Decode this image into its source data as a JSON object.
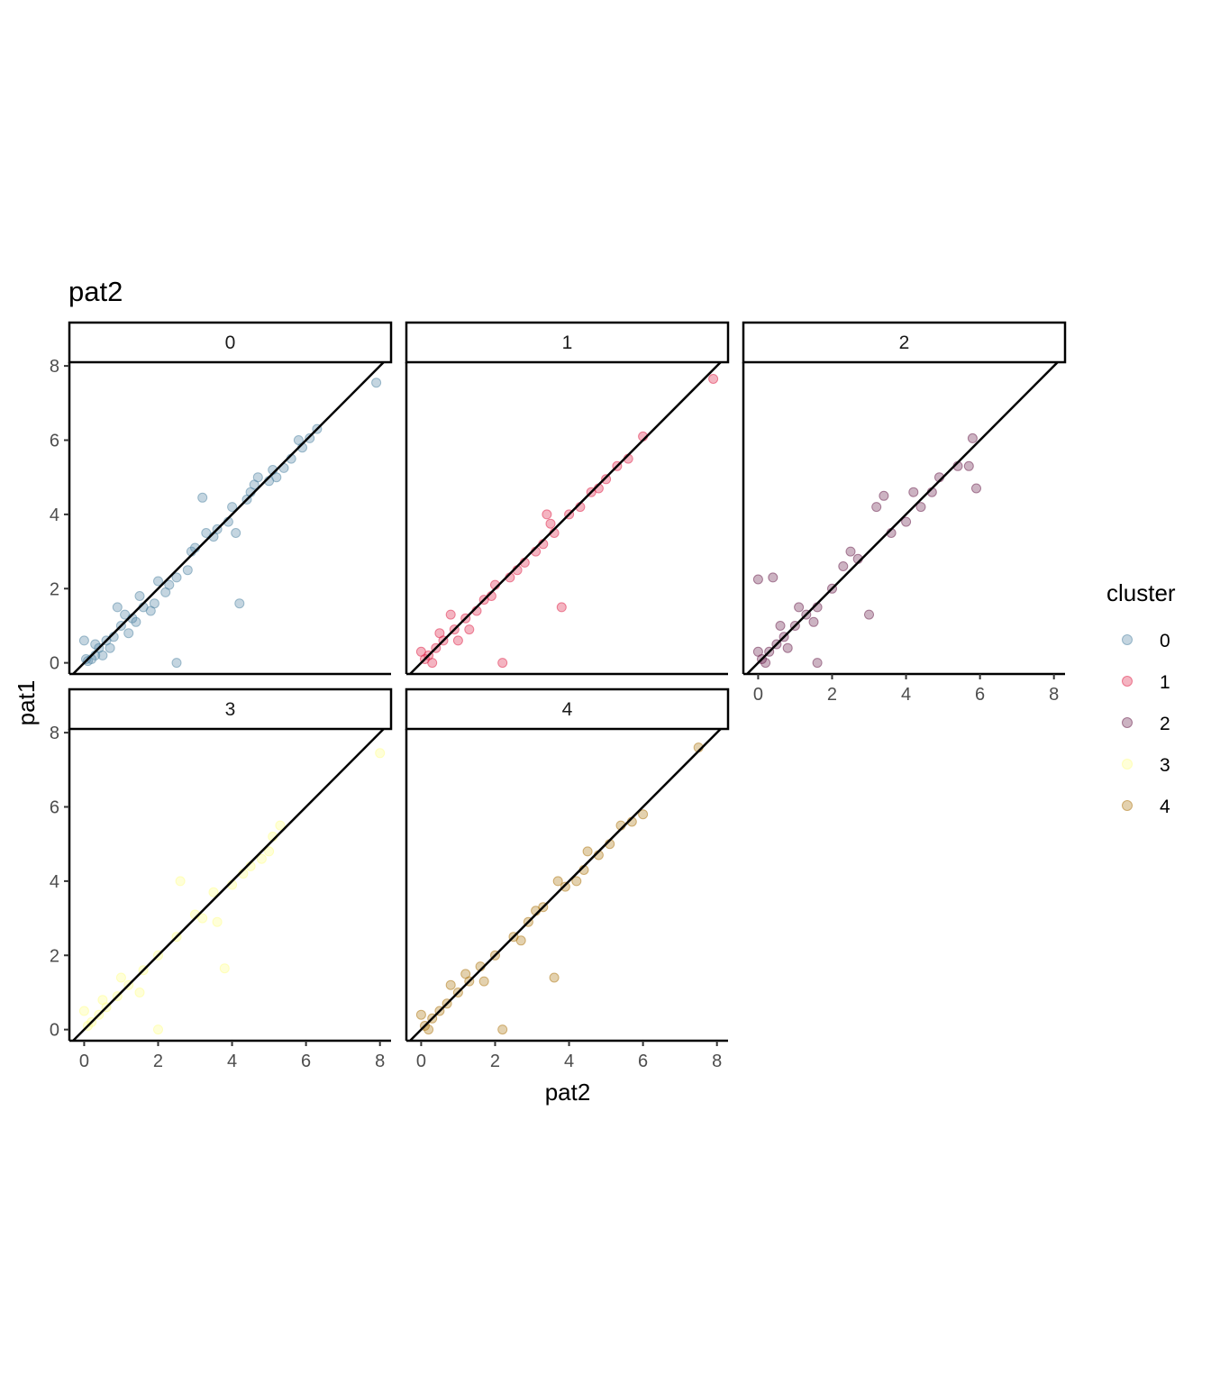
{
  "chart_data": {
    "type": "scatter",
    "title": "pat2",
    "xlabel": "pat2",
    "ylabel": "pat1",
    "xlim": [
      -0.4,
      8.3
    ],
    "ylim": [
      -0.3,
      8.1
    ],
    "x_ticks": [
      0,
      2,
      4,
      6,
      8
    ],
    "y_ticks": [
      0,
      2,
      4,
      6,
      8
    ],
    "grid": false,
    "reference_line": "y = x",
    "legend": {
      "title": "cluster",
      "position": "right",
      "entries": [
        "0",
        "1",
        "2",
        "3",
        "4"
      ]
    },
    "facets": [
      {
        "label": "0",
        "color": "#5688A5",
        "points": [
          [
            7.9,
            7.55
          ],
          [
            6.3,
            6.3
          ],
          [
            6.1,
            6.05
          ],
          [
            5.8,
            6.0
          ],
          [
            5.4,
            5.25
          ],
          [
            4.6,
            4.8
          ],
          [
            4.0,
            4.2
          ],
          [
            3.2,
            4.45
          ],
          [
            2.9,
            3.0
          ],
          [
            3.5,
            3.4
          ],
          [
            4.7,
            5.0
          ],
          [
            5.2,
            5.0
          ],
          [
            4.1,
            3.5
          ],
          [
            4.2,
            1.6
          ],
          [
            2.5,
            0.0
          ],
          [
            2.2,
            1.9
          ],
          [
            2.5,
            2.3
          ],
          [
            3.0,
            3.1
          ],
          [
            3.6,
            3.6
          ],
          [
            4.4,
            4.4
          ],
          [
            5.0,
            4.9
          ],
          [
            5.6,
            5.5
          ],
          [
            2.8,
            2.5
          ],
          [
            1.9,
            1.6
          ],
          [
            1.6,
            1.5
          ],
          [
            1.3,
            1.2
          ],
          [
            1.0,
            1.0
          ],
          [
            0.8,
            0.7
          ],
          [
            0.6,
            0.6
          ],
          [
            0.4,
            0.4
          ],
          [
            0.3,
            0.2
          ],
          [
            0.2,
            0.1
          ],
          [
            0.1,
            0.05
          ],
          [
            0.05,
            0.1
          ],
          [
            0.0,
            0.6
          ],
          [
            0.9,
            1.5
          ],
          [
            1.5,
            1.8
          ],
          [
            2.0,
            2.2
          ],
          [
            1.8,
            1.4
          ],
          [
            1.2,
            0.8
          ],
          [
            0.7,
            0.4
          ],
          [
            0.5,
            0.2
          ],
          [
            0.3,
            0.5
          ],
          [
            1.1,
            1.3
          ],
          [
            1.4,
            1.1
          ],
          [
            2.3,
            2.1
          ],
          [
            3.3,
            3.5
          ],
          [
            3.9,
            3.8
          ],
          [
            4.5,
            4.6
          ],
          [
            5.1,
            5.2
          ],
          [
            5.9,
            5.8
          ]
        ]
      },
      {
        "label": "1",
        "color": "#E0284D",
        "points": [
          [
            7.9,
            7.65
          ],
          [
            6.0,
            6.1
          ],
          [
            5.6,
            5.5
          ],
          [
            5.0,
            4.95
          ],
          [
            4.3,
            4.2
          ],
          [
            3.4,
            4.0
          ],
          [
            3.5,
            3.75
          ],
          [
            3.8,
            1.5
          ],
          [
            2.2,
            0.0
          ],
          [
            2.6,
            2.5
          ],
          [
            3.1,
            3.0
          ],
          [
            4.6,
            4.6
          ],
          [
            5.3,
            5.3
          ],
          [
            1.9,
            1.8
          ],
          [
            1.5,
            1.4
          ],
          [
            1.2,
            1.2
          ],
          [
            0.9,
            0.9
          ],
          [
            0.6,
            0.6
          ],
          [
            0.4,
            0.4
          ],
          [
            0.2,
            0.2
          ],
          [
            0.1,
            0.1
          ],
          [
            0.0,
            0.3
          ],
          [
            0.3,
            0.0
          ],
          [
            0.8,
            1.3
          ],
          [
            1.3,
            0.9
          ],
          [
            2.0,
            2.1
          ],
          [
            2.8,
            2.7
          ],
          [
            3.3,
            3.2
          ],
          [
            4.0,
            4.0
          ],
          [
            4.8,
            4.7
          ],
          [
            0.5,
            0.8
          ],
          [
            1.0,
            0.6
          ],
          [
            1.7,
            1.7
          ],
          [
            2.4,
            2.3
          ],
          [
            3.6,
            3.5
          ]
        ]
      },
      {
        "label": "2",
        "color": "#6E2450",
        "points": [
          [
            5.8,
            6.05
          ],
          [
            5.7,
            5.3
          ],
          [
            5.9,
            4.7
          ],
          [
            4.9,
            5.0
          ],
          [
            4.7,
            4.6
          ],
          [
            4.2,
            4.6
          ],
          [
            3.2,
            4.2
          ],
          [
            3.4,
            4.5
          ],
          [
            2.5,
            3.0
          ],
          [
            3.0,
            1.3
          ],
          [
            1.6,
            0.0
          ],
          [
            0.4,
            2.3
          ],
          [
            0.0,
            2.25
          ],
          [
            2.0,
            2.0
          ],
          [
            1.6,
            1.5
          ],
          [
            1.3,
            1.3
          ],
          [
            1.0,
            1.0
          ],
          [
            0.7,
            0.7
          ],
          [
            0.5,
            0.5
          ],
          [
            0.3,
            0.3
          ],
          [
            0.1,
            0.1
          ],
          [
            0.0,
            0.3
          ],
          [
            0.2,
            0.0
          ],
          [
            2.3,
            2.6
          ],
          [
            2.7,
            2.8
          ],
          [
            3.6,
            3.5
          ],
          [
            4.0,
            3.8
          ],
          [
            4.4,
            4.2
          ],
          [
            5.4,
            5.3
          ],
          [
            1.1,
            1.5
          ],
          [
            1.5,
            1.1
          ],
          [
            0.8,
            0.4
          ],
          [
            0.6,
            1.0
          ]
        ]
      },
      {
        "label": "3",
        "color": "#FFFF8F",
        "points": [
          [
            8.0,
            7.45
          ],
          [
            5.3,
            5.5
          ],
          [
            5.1,
            5.2
          ],
          [
            4.8,
            4.6
          ],
          [
            4.5,
            4.4
          ],
          [
            4.0,
            3.9
          ],
          [
            3.5,
            3.7
          ],
          [
            3.6,
            2.9
          ],
          [
            3.8,
            1.65
          ],
          [
            2.6,
            4.0
          ],
          [
            2.0,
            0.0
          ],
          [
            3.0,
            3.1
          ],
          [
            2.5,
            2.5
          ],
          [
            2.0,
            2.0
          ],
          [
            1.6,
            1.6
          ],
          [
            1.2,
            1.2
          ],
          [
            0.9,
            0.9
          ],
          [
            0.6,
            0.6
          ],
          [
            0.4,
            0.4
          ],
          [
            0.2,
            0.2
          ],
          [
            0.1,
            0.1
          ],
          [
            0.0,
            0.5
          ],
          [
            1.5,
            1.0
          ],
          [
            1.0,
            1.4
          ],
          [
            0.5,
            0.8
          ],
          [
            3.2,
            3.0
          ],
          [
            4.3,
            4.2
          ],
          [
            5.0,
            4.8
          ]
        ]
      },
      {
        "label": "4",
        "color": "#B07A17",
        "points": [
          [
            7.5,
            7.6
          ],
          [
            6.0,
            5.8
          ],
          [
            5.7,
            5.6
          ],
          [
            5.1,
            5.0
          ],
          [
            4.5,
            4.8
          ],
          [
            4.4,
            4.3
          ],
          [
            3.9,
            3.85
          ],
          [
            3.7,
            4.0
          ],
          [
            3.6,
            1.4
          ],
          [
            2.2,
            0.0
          ],
          [
            4.2,
            4.0
          ],
          [
            3.3,
            3.3
          ],
          [
            2.9,
            2.9
          ],
          [
            2.5,
            2.5
          ],
          [
            2.0,
            2.0
          ],
          [
            1.6,
            1.7
          ],
          [
            1.3,
            1.3
          ],
          [
            1.0,
            1.0
          ],
          [
            0.7,
            0.7
          ],
          [
            0.5,
            0.5
          ],
          [
            0.3,
            0.3
          ],
          [
            0.1,
            0.1
          ],
          [
            0.0,
            0.4
          ],
          [
            0.2,
            0.0
          ],
          [
            1.2,
            1.5
          ],
          [
            1.7,
            1.3
          ],
          [
            0.8,
            1.2
          ],
          [
            2.7,
            2.4
          ],
          [
            3.1,
            3.2
          ],
          [
            4.8,
            4.7
          ],
          [
            5.4,
            5.5
          ]
        ]
      }
    ]
  }
}
